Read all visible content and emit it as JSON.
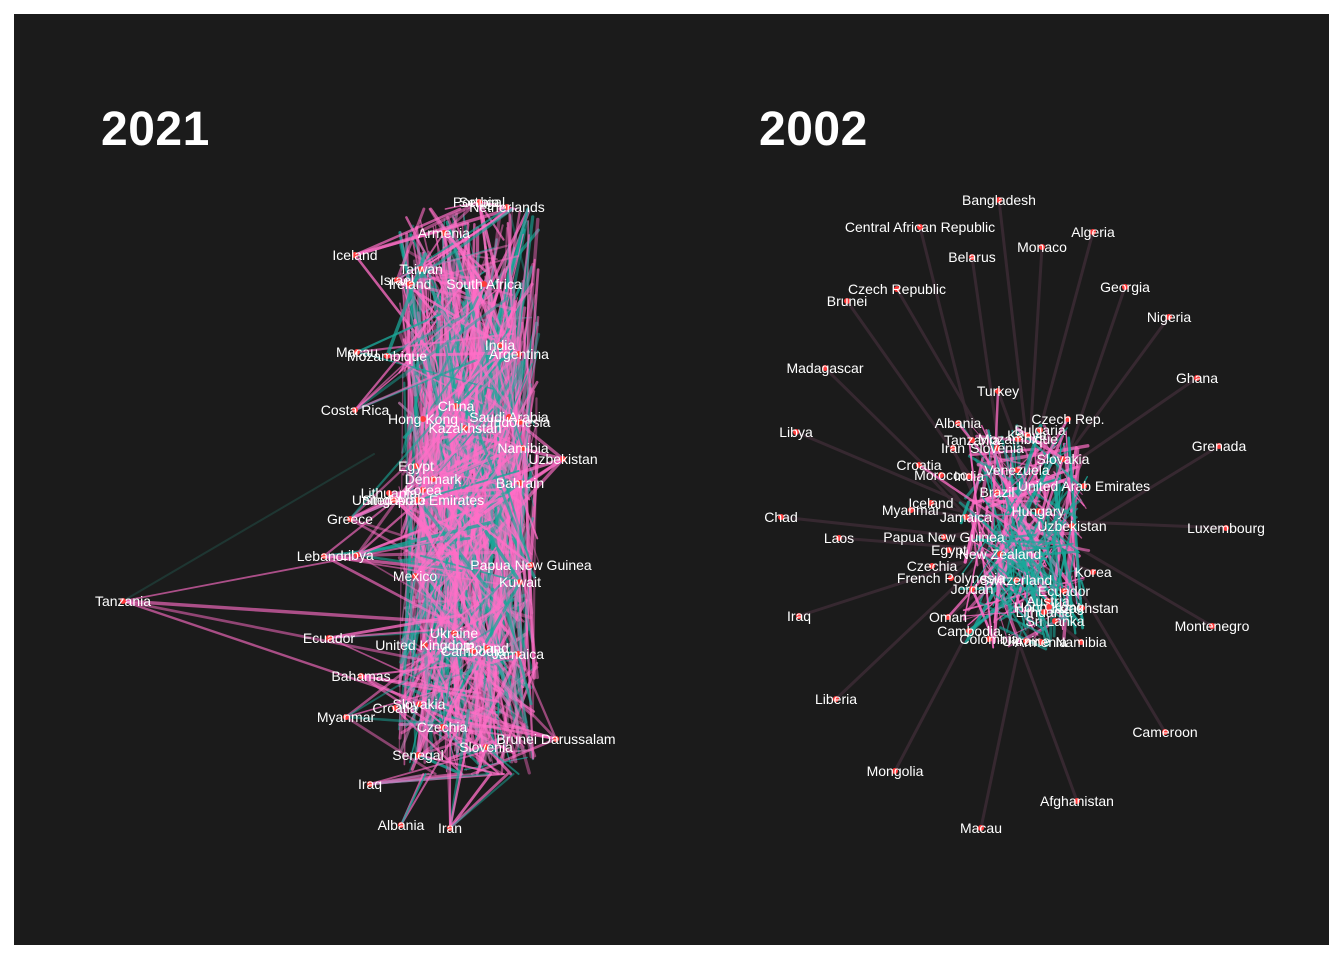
{
  "colors": {
    "background": "#1b1b1b",
    "node": "#ff3b3b",
    "edge_pink": "#ff6ec7",
    "edge_teal": "#1aa89a",
    "edge_dark": "#3a2a33",
    "label": "#ffffff"
  },
  "panels": [
    {
      "title": "2021",
      "nodes": [
        {
          "label": "Serbia"
        },
        {
          "label": "Portugal"
        },
        {
          "label": "Netherlands"
        },
        {
          "label": "Armenia"
        },
        {
          "label": "Iceland"
        },
        {
          "label": "Taiwan"
        },
        {
          "label": "Israel"
        },
        {
          "label": "Ireland"
        },
        {
          "label": "South Africa"
        },
        {
          "label": "India"
        },
        {
          "label": "Macau"
        },
        {
          "label": "Mozambique"
        },
        {
          "label": "Argentina"
        },
        {
          "label": "China"
        },
        {
          "label": "Costa Rica"
        },
        {
          "label": "Hong Kong"
        },
        {
          "label": "Saudi Arabia"
        },
        {
          "label": "Indonesia"
        },
        {
          "label": "Kazakhstan"
        },
        {
          "label": "Namibia"
        },
        {
          "label": "Uzbekistan"
        },
        {
          "label": "Egypt"
        },
        {
          "label": "Denmark"
        },
        {
          "label": "Bahrain"
        },
        {
          "label": "Korea"
        },
        {
          "label": "Lithuania"
        },
        {
          "label": "Singapore"
        },
        {
          "label": "Greece"
        },
        {
          "label": "Lebanon"
        },
        {
          "label": "Libya"
        },
        {
          "label": "United Arab Emirates"
        },
        {
          "label": "Papua New Guinea"
        },
        {
          "label": "Mexico"
        },
        {
          "label": "Kuwait"
        },
        {
          "label": "Tanzania"
        },
        {
          "label": "Ecuador"
        },
        {
          "label": "Ukraine"
        },
        {
          "label": "United Kingdom"
        },
        {
          "label": "Poland"
        },
        {
          "label": "Cambodia"
        },
        {
          "label": "Jamaica"
        },
        {
          "label": "Bahamas"
        },
        {
          "label": "Slovakia"
        },
        {
          "label": "Croatia"
        },
        {
          "label": "Myanmar"
        },
        {
          "label": "Czechia"
        },
        {
          "label": "Brunei Darussalam"
        },
        {
          "label": "Slovenia"
        },
        {
          "label": "Senegal"
        },
        {
          "label": "Iraq"
        },
        {
          "label": "Albania"
        },
        {
          "label": "Iran"
        }
      ]
    },
    {
      "title": "2002",
      "nodes": [
        {
          "label": "Bangladesh"
        },
        {
          "label": "Central African Republic"
        },
        {
          "label": "Algeria"
        },
        {
          "label": "Monaco"
        },
        {
          "label": "Belarus"
        },
        {
          "label": "Czech Republic"
        },
        {
          "label": "Georgia"
        },
        {
          "label": "Brunei"
        },
        {
          "label": "Nigeria"
        },
        {
          "label": "Madagascar"
        },
        {
          "label": "Ghana"
        },
        {
          "label": "Turkey"
        },
        {
          "label": "Czech Rep."
        },
        {
          "label": "Libya"
        },
        {
          "label": "Albania"
        },
        {
          "label": "Bulgaria"
        },
        {
          "label": "Kenya"
        },
        {
          "label": "Grenada"
        },
        {
          "label": "Tanzania"
        },
        {
          "label": "Mozambique"
        },
        {
          "label": "Iran"
        },
        {
          "label": "Slovenia"
        },
        {
          "label": "Slovakia"
        },
        {
          "label": "Croatia"
        },
        {
          "label": "Venezuela"
        },
        {
          "label": "Morocco"
        },
        {
          "label": "India"
        },
        {
          "label": "Brazil"
        },
        {
          "label": "United Arab Emirates"
        },
        {
          "label": "Chad"
        },
        {
          "label": "Iceland"
        },
        {
          "label": "Myanmar"
        },
        {
          "label": "Jamaica"
        },
        {
          "label": "Hungary"
        },
        {
          "label": "Uzbekistan"
        },
        {
          "label": "Luxembourg"
        },
        {
          "label": "Laos"
        },
        {
          "label": "Papua New Guinea"
        },
        {
          "label": "Egypt"
        },
        {
          "label": "New Zealand"
        },
        {
          "label": "Korea"
        },
        {
          "label": "Czechia"
        },
        {
          "label": "French Polynesia"
        },
        {
          "label": "Switzerland"
        },
        {
          "label": "Ecuador"
        },
        {
          "label": "Jordan"
        },
        {
          "label": "Iraq"
        },
        {
          "label": "Austria"
        },
        {
          "label": "Kazakhstan"
        },
        {
          "label": "Hong Kong"
        },
        {
          "label": "Lithuania"
        },
        {
          "label": "Montenegro"
        },
        {
          "label": "Oman"
        },
        {
          "label": "Sri Lanka"
        },
        {
          "label": "Cambodia"
        },
        {
          "label": "Colombia"
        },
        {
          "label": "Ukraine"
        },
        {
          "label": "Armenia"
        },
        {
          "label": "Namibia"
        },
        {
          "label": "Liberia"
        },
        {
          "label": "Cameroon"
        },
        {
          "label": "Mongolia"
        },
        {
          "label": "Afghanistan"
        },
        {
          "label": "Macau"
        }
      ]
    }
  ]
}
